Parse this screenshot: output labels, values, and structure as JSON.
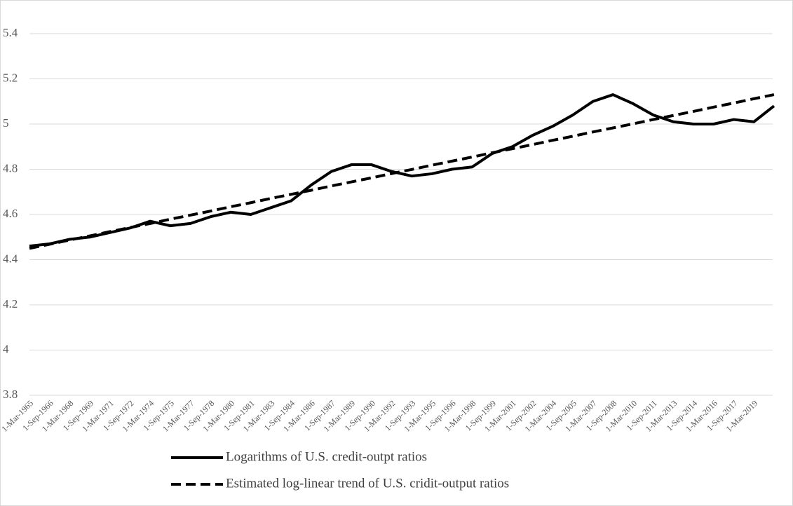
{
  "chart_data": {
    "type": "line",
    "categories": [
      "1-Mar-1965",
      "1-Sep-1966",
      "1-Mar-1968",
      "1-Sep-1969",
      "1-Mar-1971",
      "1-Sep-1972",
      "1-Mar-1974",
      "1-Sep-1975",
      "1-Mar-1977",
      "1-Sep-1978",
      "1-Mar-1980",
      "1-Sep-1981",
      "1-Mar-1983",
      "1-Sep-1984",
      "1-Mar-1986",
      "1-Sep-1987",
      "1-Mar-1989",
      "1-Sep-1990",
      "1-Mar-1992",
      "1-Sep-1993",
      "1-Mar-1995",
      "1-Sep-1996",
      "1-Mar-1998",
      "1-Sep-1999",
      "1-Mar-2001",
      "1-Sep-2002",
      "1-Mar-2004",
      "1-Sep-2005",
      "1-Mar-2007",
      "1-Sep-2008",
      "1-Mar-2010",
      "1-Sep-2011",
      "1-Mar-2013",
      "1-Sep-2014",
      "1-Mar-2016",
      "1-Sep-2017",
      "1-Mar-2019",
      null
    ],
    "series": [
      {
        "name": "Logarithms of U.S. credit-outpt ratios",
        "color": "#000000",
        "dash": false,
        "values": [
          4.46,
          4.47,
          4.49,
          4.5,
          4.52,
          4.54,
          4.57,
          4.55,
          4.56,
          4.59,
          4.61,
          4.6,
          4.63,
          4.66,
          4.73,
          4.79,
          4.82,
          4.82,
          4.79,
          4.77,
          4.78,
          4.8,
          4.81,
          4.87,
          4.9,
          4.95,
          4.99,
          5.04,
          5.1,
          5.13,
          5.09,
          5.04,
          5.01,
          5.0,
          5.0,
          5.02,
          5.01,
          5.08
        ]
      },
      {
        "name": "Estimated log-linear trend of U.S. cridit-output ratios",
        "color": "#000000",
        "dash": true,
        "values": [
          4.45,
          4.468,
          4.487,
          4.505,
          4.524,
          4.542,
          4.56,
          4.579,
          4.597,
          4.615,
          4.634,
          4.652,
          4.671,
          4.689,
          4.707,
          4.726,
          4.744,
          4.762,
          4.781,
          4.799,
          4.818,
          4.836,
          4.854,
          4.873,
          4.891,
          4.909,
          4.928,
          4.946,
          4.965,
          4.983,
          5.001,
          5.02,
          5.038,
          5.056,
          5.075,
          5.093,
          5.112,
          5.13
        ]
      }
    ],
    "ylim": [
      3.8,
      5.4
    ],
    "yticks": [
      3.8,
      4,
      4.2,
      4.4,
      4.6,
      4.8,
      5,
      5.2,
      5.4
    ],
    "grid": true
  }
}
